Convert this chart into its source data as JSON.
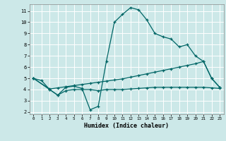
{
  "xlabel": "Humidex (Indice chaleur)",
  "bg_color": "#cce8e8",
  "grid_color": "#ffffff",
  "line_color": "#006666",
  "xlim": [
    -0.5,
    23.5
  ],
  "ylim": [
    1.8,
    11.6
  ],
  "xticks": [
    0,
    1,
    2,
    3,
    4,
    5,
    6,
    7,
    8,
    9,
    10,
    11,
    12,
    13,
    14,
    15,
    16,
    17,
    18,
    19,
    20,
    21,
    22,
    23
  ],
  "yticks": [
    2,
    3,
    4,
    5,
    6,
    7,
    8,
    9,
    10,
    11
  ],
  "curve1_x": [
    0,
    1,
    2,
    3,
    4,
    5,
    6,
    7,
    8,
    9,
    10,
    11,
    12,
    13,
    14,
    15,
    16,
    17,
    18,
    19,
    20,
    21,
    22,
    23
  ],
  "curve1_y": [
    5.0,
    4.8,
    4.0,
    3.5,
    4.2,
    4.3,
    4.1,
    2.2,
    2.5,
    6.5,
    10.0,
    10.7,
    11.3,
    11.1,
    10.2,
    9.0,
    8.7,
    8.5,
    7.8,
    8.0,
    7.0,
    6.5,
    5.0,
    4.2
  ],
  "curve2_x": [
    0,
    2,
    3,
    4,
    5,
    6,
    7,
    8,
    9,
    10,
    11,
    12,
    13,
    14,
    15,
    16,
    17,
    18,
    19,
    20,
    21,
    22,
    23
  ],
  "curve2_y": [
    5.0,
    4.05,
    4.15,
    4.25,
    4.35,
    4.45,
    4.55,
    4.65,
    4.75,
    4.85,
    4.95,
    5.1,
    5.25,
    5.4,
    5.55,
    5.7,
    5.85,
    6.0,
    6.15,
    6.3,
    6.5,
    5.0,
    4.2
  ],
  "curve3_x": [
    0,
    2,
    3,
    4,
    5,
    6,
    7,
    8,
    9,
    10,
    11,
    12,
    13,
    14,
    15,
    16,
    17,
    18,
    19,
    20,
    21,
    22,
    23
  ],
  "curve3_y": [
    5.0,
    4.0,
    3.5,
    3.9,
    4.0,
    4.0,
    4.0,
    3.9,
    4.0,
    4.0,
    4.0,
    4.05,
    4.1,
    4.15,
    4.2,
    4.2,
    4.2,
    4.2,
    4.2,
    4.2,
    4.2,
    4.15,
    4.1
  ]
}
